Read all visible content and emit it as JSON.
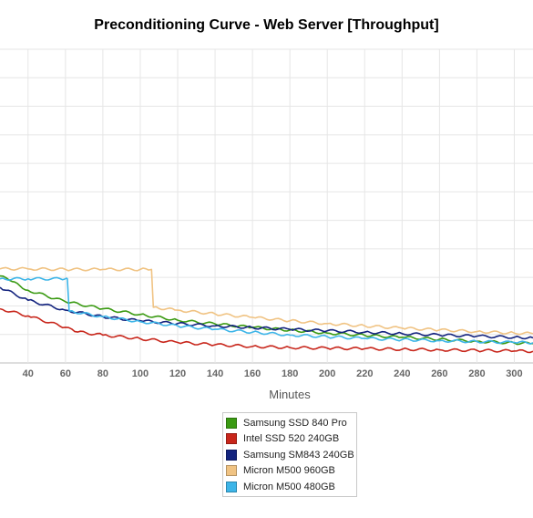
{
  "chart_data": {
    "type": "line",
    "title": "Preconditioning Curve - Web Server [Throughput]",
    "xlabel": "Minutes",
    "ylabel": "",
    "xlim": [
      25,
      310
    ],
    "ylim": [
      0,
      11
    ],
    "x_ticks": [
      40,
      60,
      80,
      100,
      120,
      140,
      160,
      180,
      200,
      220,
      240,
      260,
      280,
      300
    ],
    "grid": true,
    "legend_position": "bottom",
    "series": [
      {
        "name": "Samsung SSD 840 Pro",
        "color": "#3a9a12",
        "x": [
          25,
          30,
          40,
          60,
          80,
          100,
          120,
          140,
          160,
          180,
          200,
          220,
          240,
          260,
          280,
          300,
          310
        ],
        "y": [
          3.05,
          2.9,
          2.55,
          2.15,
          1.9,
          1.7,
          1.5,
          1.37,
          1.25,
          1.15,
          1.05,
          0.97,
          0.9,
          0.83,
          0.76,
          0.7,
          0.68
        ]
      },
      {
        "name": "Intel SSD 520 240GB",
        "color": "#c8261b",
        "x": [
          25,
          40,
          60,
          65,
          80,
          100,
          120,
          140,
          160,
          180,
          200,
          220,
          240,
          260,
          280,
          300,
          310
        ],
        "y": [
          1.9,
          1.65,
          1.25,
          1.1,
          0.98,
          0.85,
          0.72,
          0.64,
          0.58,
          0.54,
          0.52,
          0.5,
          0.48,
          0.46,
          0.44,
          0.42,
          0.41
        ]
      },
      {
        "name": "Samsung SM843 240GB",
        "color": "#13237e",
        "x": [
          25,
          40,
          60,
          80,
          100,
          120,
          140,
          160,
          180,
          200,
          220,
          240,
          260,
          280,
          300,
          310
        ],
        "y": [
          2.65,
          2.2,
          1.85,
          1.62,
          1.48,
          1.38,
          1.3,
          1.24,
          1.18,
          1.13,
          1.08,
          1.03,
          0.98,
          0.94,
          0.9,
          0.88
        ]
      },
      {
        "name": "Micron M500 960GB",
        "color": "#f0c383",
        "x": [
          25,
          40,
          60,
          80,
          100,
          106,
          107,
          120,
          140,
          160,
          180,
          200,
          220,
          240,
          260,
          280,
          300,
          310
        ],
        "y": [
          3.3,
          3.3,
          3.28,
          3.28,
          3.28,
          3.28,
          1.95,
          1.85,
          1.72,
          1.6,
          1.48,
          1.38,
          1.3,
          1.22,
          1.16,
          1.1,
          1.05,
          1.03
        ]
      },
      {
        "name": "Micron M500 480GB",
        "color": "#3db5e8",
        "x": [
          25,
          40,
          60,
          61,
          62,
          80,
          100,
          120,
          140,
          160,
          180,
          200,
          220,
          240,
          260,
          280,
          300,
          310
        ],
        "y": [
          2.95,
          2.95,
          2.95,
          2.95,
          1.82,
          1.62,
          1.45,
          1.3,
          1.18,
          1.08,
          0.98,
          0.92,
          0.86,
          0.82,
          0.78,
          0.75,
          0.72,
          0.71
        ]
      }
    ]
  }
}
